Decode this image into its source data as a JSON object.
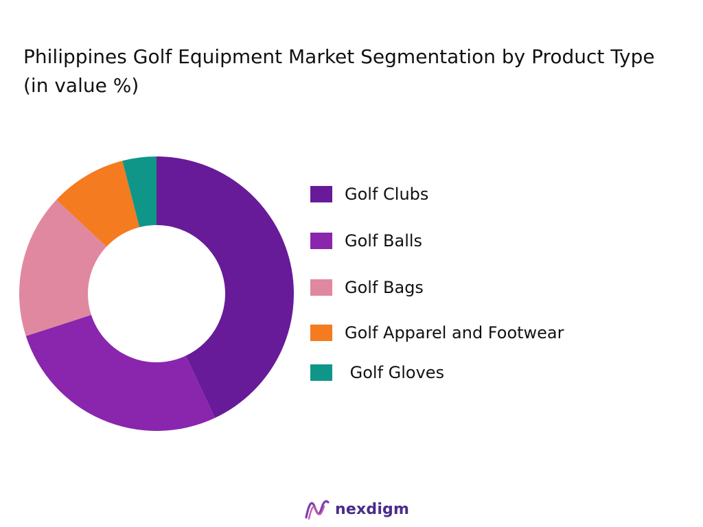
{
  "title": "Philippines Golf Equipment Market Segmentation by Product Type  (in value %)",
  "chart_data": {
    "type": "pie",
    "donut": true,
    "title": "Philippines Golf Equipment Market Segmentation by Product Type  (in value %)",
    "categories": [
      "Golf Clubs",
      "Golf Balls",
      "Golf Bags",
      "Golf Apparel and Footwear",
      " Golf Gloves"
    ],
    "values": [
      43,
      27,
      17,
      9,
      4
    ],
    "colors": [
      "#671b98",
      "#8a25ad",
      "#e088a0",
      "#f47b20",
      "#0f9688"
    ],
    "legend_position": "right"
  },
  "legend": {
    "items": [
      {
        "label": "Golf Clubs",
        "color": "#671b98"
      },
      {
        "label": "Golf Balls",
        "color": "#8a25ad"
      },
      {
        "label": "Golf Bags",
        "color": "#e088a0"
      },
      {
        "label": "Golf Apparel and Footwear",
        "color": "#f47b20"
      },
      {
        "label": " Golf Gloves",
        "color": "#0f9688"
      }
    ]
  },
  "logo": {
    "text": "nexdigm",
    "color": "#4a2b8c"
  }
}
